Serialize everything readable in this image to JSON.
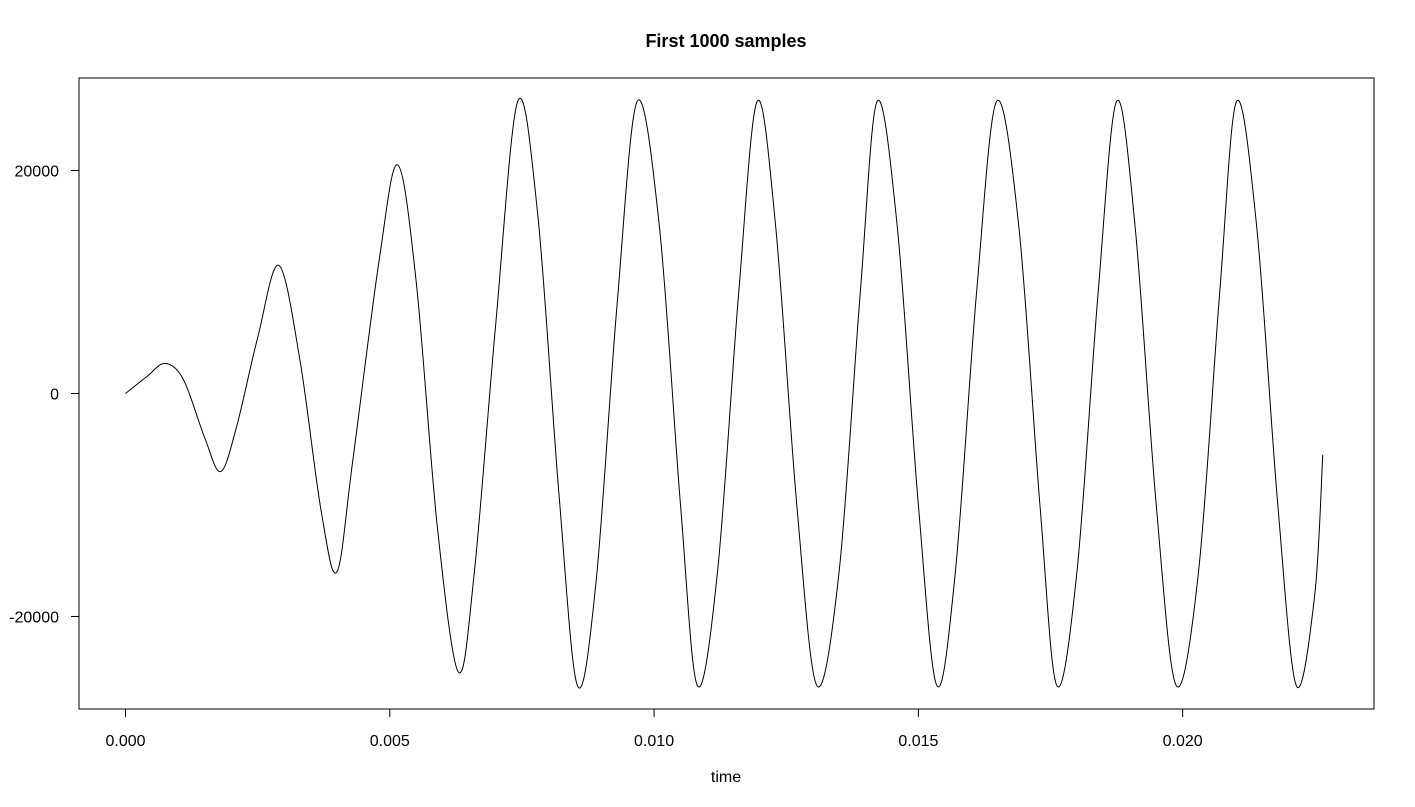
{
  "chart_data": {
    "type": "line",
    "title": "First 1000 samples",
    "xlabel": "time",
    "ylabel": "",
    "xlim": [
      -0.00088,
      0.02362
    ],
    "ylim": [
      -28300,
      28300
    ],
    "x_ticks": [
      0.0,
      0.005,
      0.01,
      0.015,
      0.02
    ],
    "x_tick_labels": [
      "0.000",
      "0.005",
      "0.010",
      "0.015",
      "0.020"
    ],
    "y_ticks": [
      -20000,
      0,
      20000
    ],
    "y_tick_labels": [
      "-20000",
      "0",
      "20000"
    ],
    "grid": false,
    "legend": "none",
    "line_color": "#000000",
    "series": [
      {
        "x": [
          0.0,
          0.0004,
          0.00075,
          0.0011,
          0.0015,
          0.0018,
          0.0021,
          0.0025,
          0.0029,
          0.0033,
          0.0037,
          0.004,
          0.0043,
          0.0048,
          0.00515,
          0.0055,
          0.0059,
          0.0063,
          0.0066,
          0.007,
          0.00742,
          0.0078,
          0.0082,
          0.00855,
          0.0089,
          0.0093,
          0.00968,
          0.0101,
          0.0105,
          0.01082,
          0.0112,
          0.0116,
          0.01195,
          0.0123,
          0.0127,
          0.01308,
          0.0135,
          0.0139,
          0.01422,
          0.0146,
          0.015,
          0.01535,
          0.0157,
          0.0161,
          0.01648,
          0.0169,
          0.0173,
          0.01762,
          0.018,
          0.0184,
          0.01875,
          0.0191,
          0.0195,
          0.01988,
          0.0203,
          0.0207,
          0.02102,
          0.0214,
          0.0218,
          0.02215,
          0.0225,
          0.02265
        ],
        "y": [
          0,
          1500,
          2700,
          1200,
          -4000,
          -7000,
          -3000,
          5000,
          11500,
          3000,
          -10500,
          -16000,
          -6000,
          12000,
          20500,
          10000,
          -12000,
          -25000,
          -16000,
          6000,
          26200,
          16000,
          -9000,
          -26200,
          -17000,
          8000,
          26200,
          15000,
          -10000,
          -26200,
          -16000,
          9000,
          26200,
          15000,
          -10000,
          -26200,
          -16000,
          9000,
          26200,
          15000,
          -10000,
          -26200,
          -16000,
          9000,
          26200,
          15000,
          -10000,
          -26200,
          -16000,
          9000,
          26200,
          15000,
          -10000,
          -26200,
          -16000,
          9000,
          26200,
          15000,
          -10000,
          -26200,
          -18000,
          -5500
        ]
      }
    ]
  }
}
